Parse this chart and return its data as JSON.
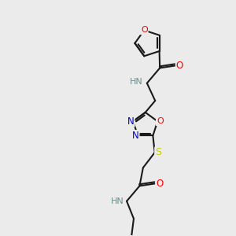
{
  "bg_color": "#ebebeb",
  "atom_colors": {
    "O": "#ff0000",
    "N": "#0000cd",
    "S": "#cccc00",
    "HN": "#6b8e8e",
    "C": "#000000"
  },
  "bond_color": "#1a1a1a",
  "bond_width": 1.5,
  "figsize": [
    3.0,
    3.0
  ],
  "dpi": 100
}
